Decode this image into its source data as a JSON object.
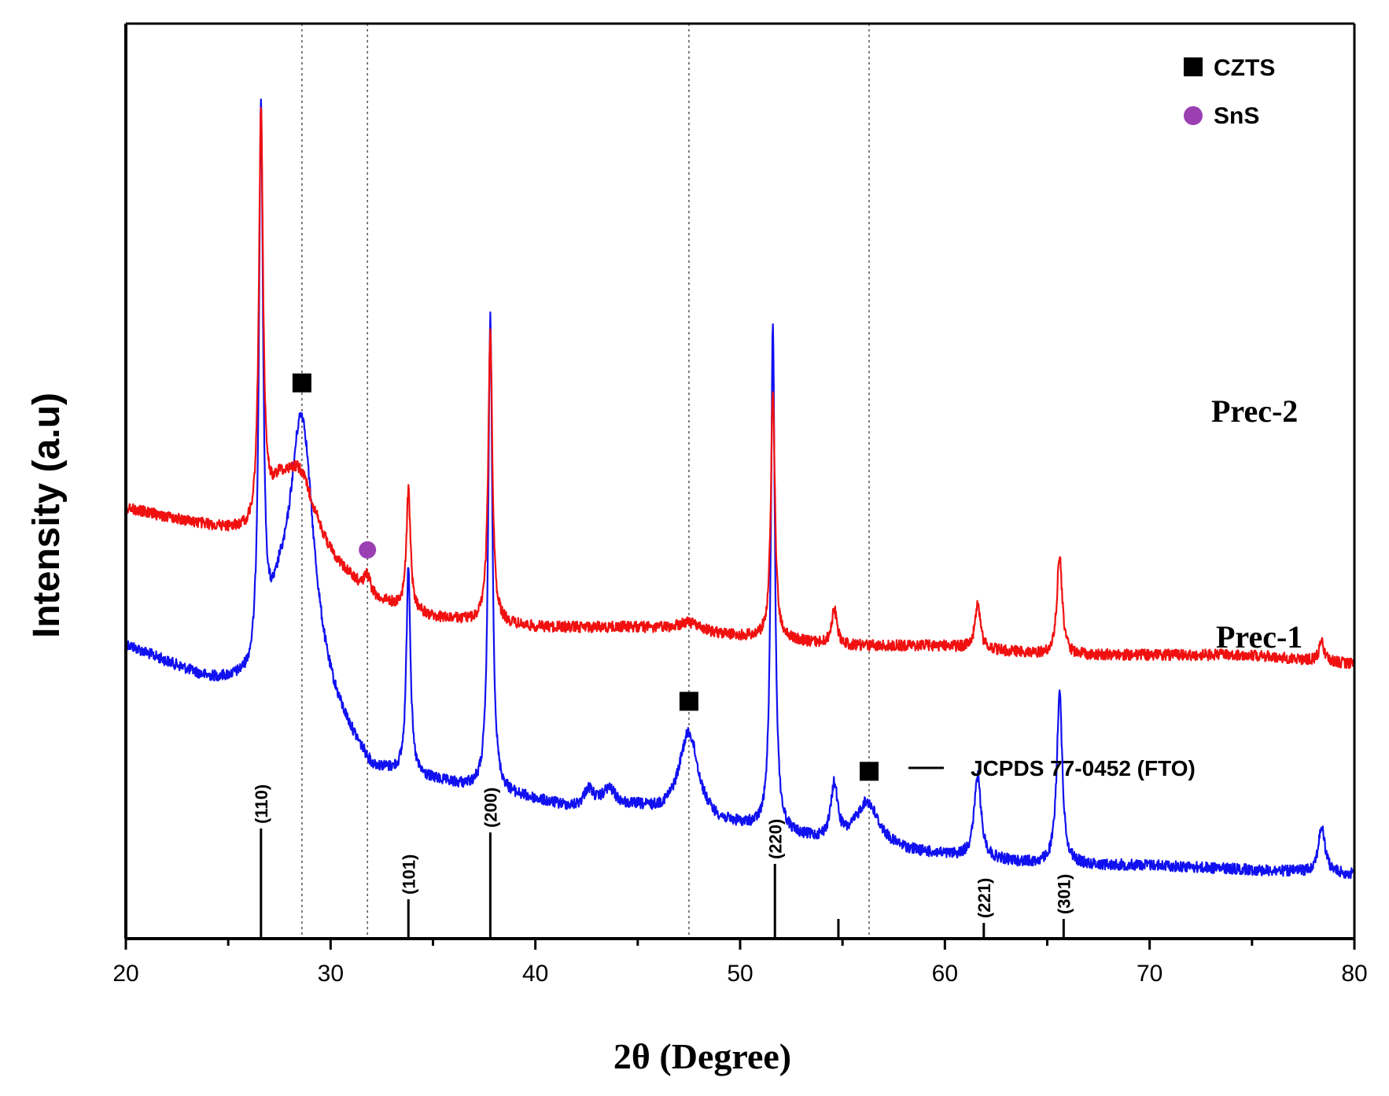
{
  "chart_data": {
    "type": "line",
    "title": "",
    "xlabel": "2θ (Degree)",
    "ylabel": "Intensity (a.u)",
    "xlim": [
      20,
      80
    ],
    "xticks": [
      "20",
      "30",
      "40",
      "50",
      "60",
      "70",
      "80"
    ],
    "y_ticks_shown": false,
    "series": [
      {
        "name": "Prec-2",
        "color": "#1010f0",
        "baseline": [
          [
            20,
            0.68
          ],
          [
            24,
            0.72
          ],
          [
            26.2,
            0.73
          ],
          [
            27.5,
            0.67
          ],
          [
            30,
            0.76
          ],
          [
            32,
            0.82
          ],
          [
            35,
            0.83
          ],
          [
            40,
            0.85
          ],
          [
            42,
            0.86
          ],
          [
            45,
            0.86
          ],
          [
            48,
            0.88
          ],
          [
            50,
            0.88
          ],
          [
            55,
            0.9
          ],
          [
            60,
            0.91
          ],
          [
            65,
            0.92
          ],
          [
            70,
            0.92
          ],
          [
            75,
            0.925
          ],
          [
            80,
            0.93
          ]
        ],
        "peaks": [
          {
            "pos": 26.6,
            "height": 0.6,
            "width": 0.12
          },
          {
            "pos": 28.6,
            "height": 0.28,
            "width": 0.7
          },
          {
            "pos": 33.8,
            "height": 0.23,
            "width": 0.12
          },
          {
            "pos": 37.8,
            "height": 0.52,
            "width": 0.12
          },
          {
            "pos": 42.6,
            "height": 0.02,
            "width": 0.3
          },
          {
            "pos": 43.6,
            "height": 0.02,
            "width": 0.4
          },
          {
            "pos": 47.5,
            "height": 0.1,
            "width": 0.6
          },
          {
            "pos": 51.6,
            "height": 0.55,
            "width": 0.12
          },
          {
            "pos": 54.6,
            "height": 0.06,
            "width": 0.2
          },
          {
            "pos": 56.2,
            "height": 0.05,
            "width": 0.7
          },
          {
            "pos": 61.6,
            "height": 0.09,
            "width": 0.2
          },
          {
            "pos": 65.6,
            "height": 0.19,
            "width": 0.16
          },
          {
            "pos": 78.4,
            "height": 0.05,
            "width": 0.2
          }
        ]
      },
      {
        "name": "Prec-1",
        "color": "#f01010",
        "baseline": [
          [
            20,
            0.53
          ],
          [
            24,
            0.55
          ],
          [
            26.2,
            0.56
          ],
          [
            27.5,
            0.52
          ],
          [
            30,
            0.59
          ],
          [
            32,
            0.63
          ],
          [
            35,
            0.65
          ],
          [
            40,
            0.66
          ],
          [
            45,
            0.66
          ],
          [
            50,
            0.67
          ],
          [
            55,
            0.68
          ],
          [
            60,
            0.68
          ],
          [
            65,
            0.69
          ],
          [
            70,
            0.69
          ],
          [
            75,
            0.69
          ],
          [
            80,
            0.7
          ]
        ],
        "peaks": [
          {
            "pos": 26.6,
            "height": 0.45,
            "width": 0.12
          },
          {
            "pos": 28.5,
            "height": 0.06,
            "width": 0.9
          },
          {
            "pos": 31.8,
            "height": 0.02,
            "width": 0.2
          },
          {
            "pos": 33.8,
            "height": 0.13,
            "width": 0.12
          },
          {
            "pos": 37.8,
            "height": 0.32,
            "width": 0.12
          },
          {
            "pos": 47.5,
            "height": 0.01,
            "width": 0.7
          },
          {
            "pos": 51.6,
            "height": 0.27,
            "width": 0.12
          },
          {
            "pos": 54.6,
            "height": 0.04,
            "width": 0.15
          },
          {
            "pos": 61.6,
            "height": 0.05,
            "width": 0.15
          },
          {
            "pos": 65.6,
            "height": 0.11,
            "width": 0.15
          },
          {
            "pos": 78.4,
            "height": 0.02,
            "width": 0.15
          }
        ]
      }
    ],
    "series_labels": [
      "Prec-2",
      "Prec-1"
    ],
    "reference": {
      "label": "JCPDS 77-0452 (FTO)",
      "lines": [
        {
          "pos": 26.6,
          "height": 0.28,
          "hkl": "(110)"
        },
        {
          "pos": 33.8,
          "height": 0.1,
          "hkl": "(101)"
        },
        {
          "pos": 37.8,
          "height": 0.27,
          "hkl": "(200)"
        },
        {
          "pos": 51.7,
          "height": 0.19,
          "hkl": "(220)"
        },
        {
          "pos": 54.8,
          "height": 0.05,
          "hkl": ""
        },
        {
          "pos": 61.9,
          "height": 0.04,
          "hkl": "(221)"
        },
        {
          "pos": 65.8,
          "height": 0.05,
          "hkl": "(301)"
        }
      ]
    },
    "dashed_guides": [
      28.6,
      31.8,
      47.5,
      56.3
    ],
    "markers": [
      {
        "phase": "CZTS",
        "x": 28.6,
        "series": "Prec-2"
      },
      {
        "phase": "CZTS",
        "x": 47.5,
        "series": "Prec-2"
      },
      {
        "phase": "CZTS",
        "x": 56.3,
        "series": "Prec-2"
      },
      {
        "phase": "SnS",
        "x": 31.8,
        "series": "Prec-1"
      }
    ],
    "legend": {
      "position": "top-right",
      "entries": [
        {
          "label": "CZTS",
          "symbol": "square",
          "color": "#000000"
        },
        {
          "label": "SnS",
          "symbol": "circle",
          "color": "#9b3fb3"
        }
      ]
    }
  }
}
